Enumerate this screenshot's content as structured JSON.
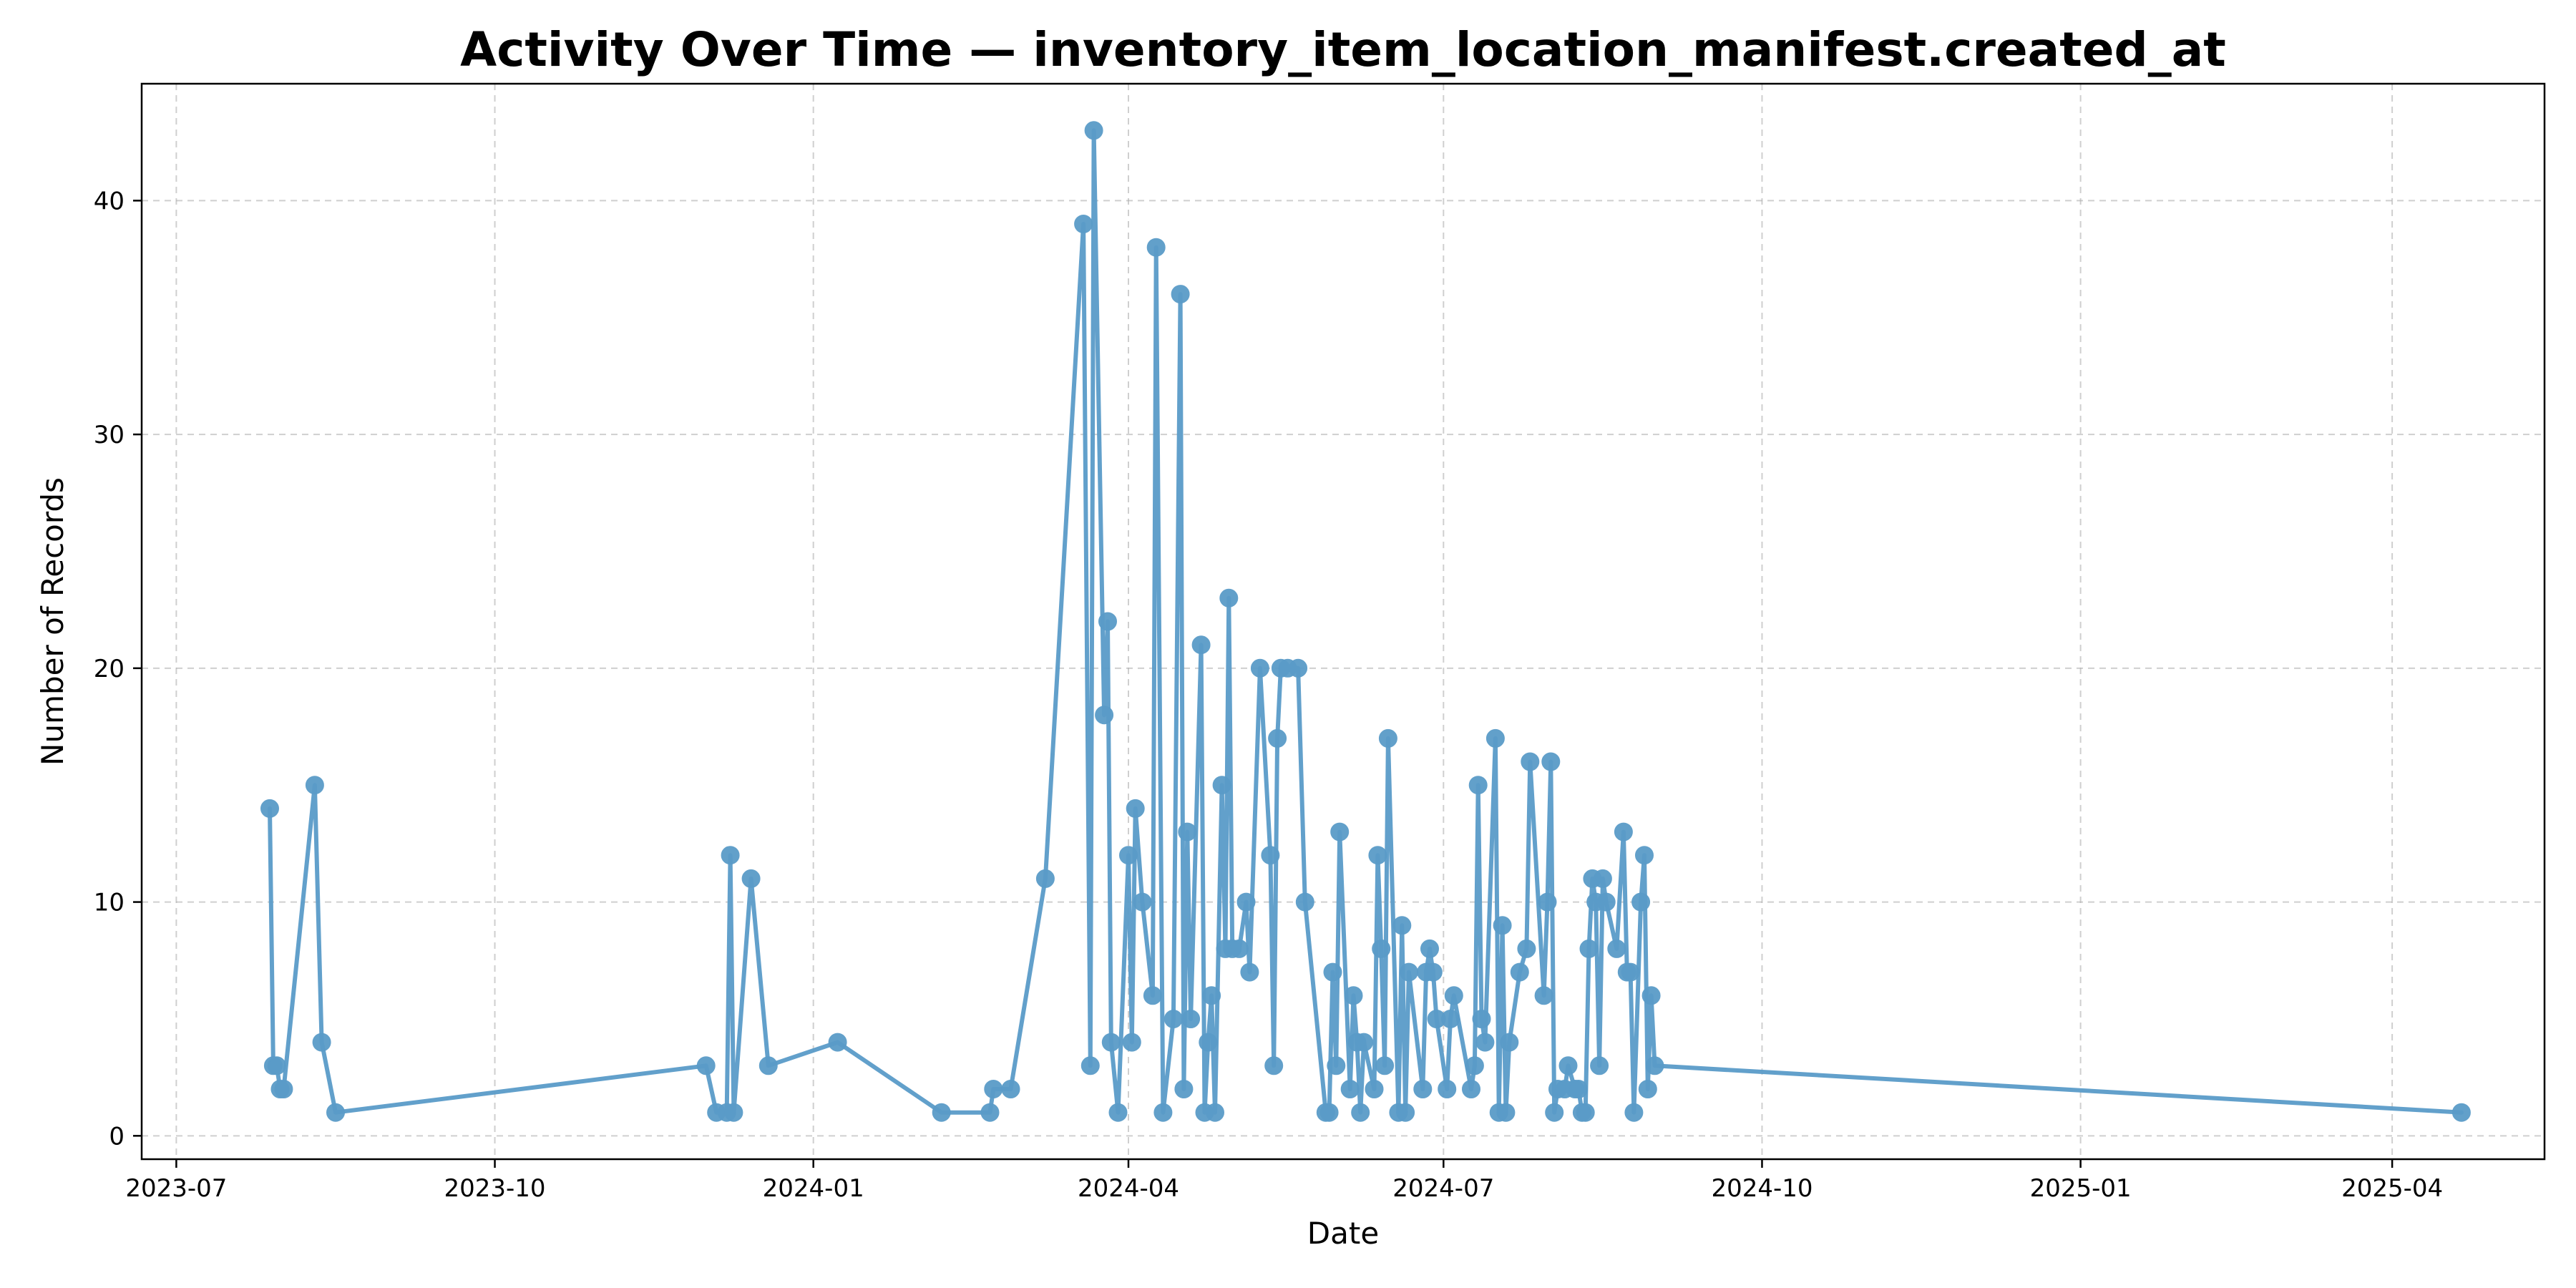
{
  "chart_data": {
    "type": "line",
    "title": "Activity Over Time — inventory_item_location_manifest.created_at",
    "xlabel": "Date",
    "ylabel": "Number of Records",
    "xlim": [
      "2023-06-21",
      "2025-05-15"
    ],
    "ylim": [
      -1,
      45
    ],
    "x_ticks": [
      "2023-07",
      "2023-10",
      "2024-01",
      "2024-04",
      "2024-07",
      "2024-10",
      "2025-01",
      "2025-04"
    ],
    "x_tick_dates": [
      "2023-07-01",
      "2023-10-01",
      "2024-01-01",
      "2024-04-01",
      "2024-07-01",
      "2024-10-01",
      "2025-01-01",
      "2025-04-01"
    ],
    "y_ticks": [
      0,
      10,
      20,
      30,
      40
    ],
    "grid": true,
    "grid_style": "dashed",
    "legend": "none",
    "line_color": "#5a9bc8",
    "marker": "circle",
    "series": [
      {
        "points": [
          [
            "2023-07-28",
            14
          ],
          [
            "2023-07-29",
            3
          ],
          [
            "2023-07-30",
            3
          ],
          [
            "2023-07-31",
            2
          ],
          [
            "2023-08-01",
            2
          ],
          [
            "2023-08-10",
            15
          ],
          [
            "2023-08-12",
            4
          ],
          [
            "2023-08-16",
            1
          ],
          [
            "2023-12-01",
            3
          ],
          [
            "2023-12-04",
            1
          ],
          [
            "2023-12-07",
            1
          ],
          [
            "2023-12-08",
            12
          ],
          [
            "2023-12-09",
            1
          ],
          [
            "2023-12-14",
            11
          ],
          [
            "2023-12-19",
            3
          ],
          [
            "2024-01-08",
            4
          ],
          [
            "2024-02-07",
            1
          ],
          [
            "2024-02-21",
            1
          ],
          [
            "2024-02-22",
            2
          ],
          [
            "2024-02-27",
            2
          ],
          [
            "2024-03-08",
            11
          ],
          [
            "2024-03-19",
            39
          ],
          [
            "2024-03-21",
            3
          ],
          [
            "2024-03-22",
            43
          ],
          [
            "2024-03-25",
            18
          ],
          [
            "2024-03-26",
            22
          ],
          [
            "2024-03-27",
            4
          ],
          [
            "2024-03-29",
            1
          ],
          [
            "2024-04-01",
            12
          ],
          [
            "2024-04-02",
            4
          ],
          [
            "2024-04-03",
            14
          ],
          [
            "2024-04-05",
            10
          ],
          [
            "2024-04-08",
            6
          ],
          [
            "2024-04-09",
            38
          ],
          [
            "2024-04-11",
            1
          ],
          [
            "2024-04-14",
            5
          ],
          [
            "2024-04-16",
            36
          ],
          [
            "2024-04-17",
            2
          ],
          [
            "2024-04-18",
            13
          ],
          [
            "2024-04-19",
            5
          ],
          [
            "2024-04-22",
            21
          ],
          [
            "2024-04-23",
            1
          ],
          [
            "2024-04-24",
            4
          ],
          [
            "2024-04-25",
            6
          ],
          [
            "2024-04-26",
            1
          ],
          [
            "2024-04-28",
            15
          ],
          [
            "2024-04-29",
            8
          ],
          [
            "2024-04-30",
            23
          ],
          [
            "2024-05-01",
            8
          ],
          [
            "2024-05-03",
            8
          ],
          [
            "2024-05-05",
            10
          ],
          [
            "2024-05-06",
            7
          ],
          [
            "2024-05-09",
            20
          ],
          [
            "2024-05-12",
            12
          ],
          [
            "2024-05-13",
            3
          ],
          [
            "2024-05-14",
            17
          ],
          [
            "2024-05-15",
            20
          ],
          [
            "2024-05-17",
            20
          ],
          [
            "2024-05-20",
            20
          ],
          [
            "2024-05-22",
            10
          ],
          [
            "2024-05-28",
            1
          ],
          [
            "2024-05-29",
            1
          ],
          [
            "2024-05-30",
            7
          ],
          [
            "2024-05-31",
            3
          ],
          [
            "2024-06-01",
            13
          ],
          [
            "2024-06-04",
            2
          ],
          [
            "2024-06-05",
            6
          ],
          [
            "2024-06-06",
            4
          ],
          [
            "2024-06-07",
            1
          ],
          [
            "2024-06-08",
            4
          ],
          [
            "2024-06-11",
            2
          ],
          [
            "2024-06-12",
            12
          ],
          [
            "2024-06-13",
            8
          ],
          [
            "2024-06-14",
            3
          ],
          [
            "2024-06-15",
            17
          ],
          [
            "2024-06-18",
            1
          ],
          [
            "2024-06-19",
            9
          ],
          [
            "2024-06-20",
            1
          ],
          [
            "2024-06-21",
            7
          ],
          [
            "2024-06-25",
            2
          ],
          [
            "2024-06-26",
            7
          ],
          [
            "2024-06-27",
            8
          ],
          [
            "2024-06-28",
            7
          ],
          [
            "2024-06-29",
            5
          ],
          [
            "2024-07-02",
            2
          ],
          [
            "2024-07-03",
            5
          ],
          [
            "2024-07-04",
            6
          ],
          [
            "2024-07-09",
            2
          ],
          [
            "2024-07-10",
            3
          ],
          [
            "2024-07-11",
            15
          ],
          [
            "2024-07-12",
            5
          ],
          [
            "2024-07-13",
            4
          ],
          [
            "2024-07-16",
            17
          ],
          [
            "2024-07-17",
            1
          ],
          [
            "2024-07-18",
            9
          ],
          [
            "2024-07-19",
            1
          ],
          [
            "2024-07-20",
            4
          ],
          [
            "2024-07-23",
            7
          ],
          [
            "2024-07-25",
            8
          ],
          [
            "2024-07-26",
            16
          ],
          [
            "2024-07-30",
            6
          ],
          [
            "2024-07-31",
            10
          ],
          [
            "2024-08-01",
            16
          ],
          [
            "2024-08-02",
            1
          ],
          [
            "2024-08-03",
            2
          ],
          [
            "2024-08-05",
            2
          ],
          [
            "2024-08-06",
            3
          ],
          [
            "2024-08-08",
            2
          ],
          [
            "2024-08-09",
            2
          ],
          [
            "2024-08-10",
            1
          ],
          [
            "2024-08-11",
            1
          ],
          [
            "2024-08-12",
            8
          ],
          [
            "2024-08-13",
            11
          ],
          [
            "2024-08-14",
            10
          ],
          [
            "2024-08-15",
            3
          ],
          [
            "2024-08-16",
            11
          ],
          [
            "2024-08-17",
            10
          ],
          [
            "2024-08-20",
            8
          ],
          [
            "2024-08-22",
            13
          ],
          [
            "2024-08-23",
            7
          ],
          [
            "2024-08-24",
            7
          ],
          [
            "2024-08-25",
            1
          ],
          [
            "2024-08-27",
            10
          ],
          [
            "2024-08-28",
            12
          ],
          [
            "2024-08-29",
            2
          ],
          [
            "2024-08-30",
            6
          ],
          [
            "2024-08-31",
            3
          ],
          [
            "2025-04-21",
            1
          ]
        ]
      }
    ]
  }
}
